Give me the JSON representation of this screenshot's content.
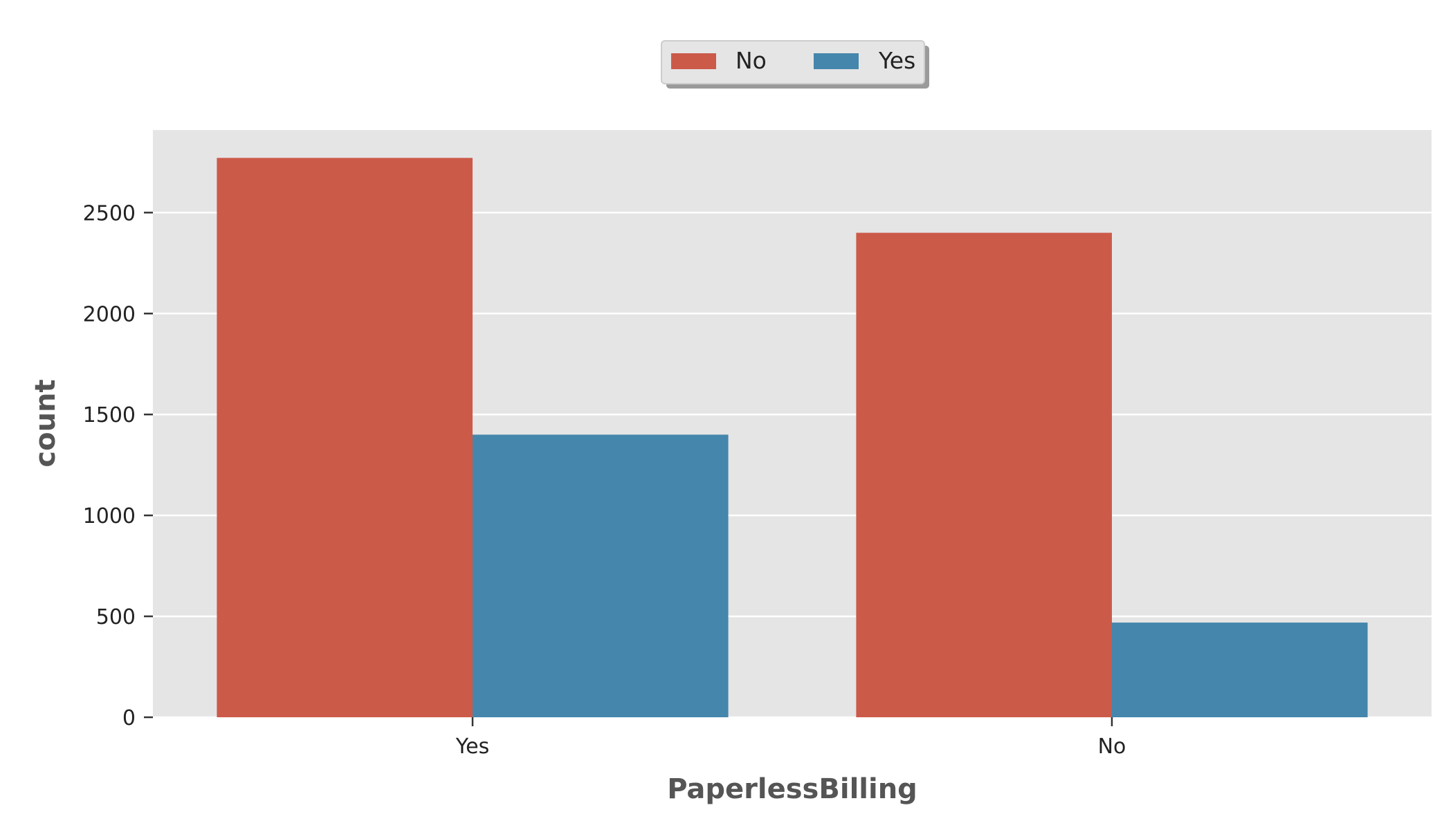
{
  "chart_data": {
    "type": "bar",
    "categories": [
      "Yes",
      "No"
    ],
    "series": [
      {
        "name": "No",
        "values": [
          2771,
          2400
        ],
        "color": "#cc5a49"
      },
      {
        "name": "Yes",
        "values": [
          1400,
          469
        ],
        "color": "#4586ac"
      }
    ],
    "xlabel": "PaperlessBilling",
    "ylabel": "count",
    "yticks": [
      0,
      500,
      1000,
      1500,
      2000,
      2500
    ],
    "ylim": [
      0,
      2909
    ],
    "grid": true,
    "legend_placement": "top-center",
    "plot_background": "#e5e5e5",
    "grid_color": "#ffffff"
  }
}
